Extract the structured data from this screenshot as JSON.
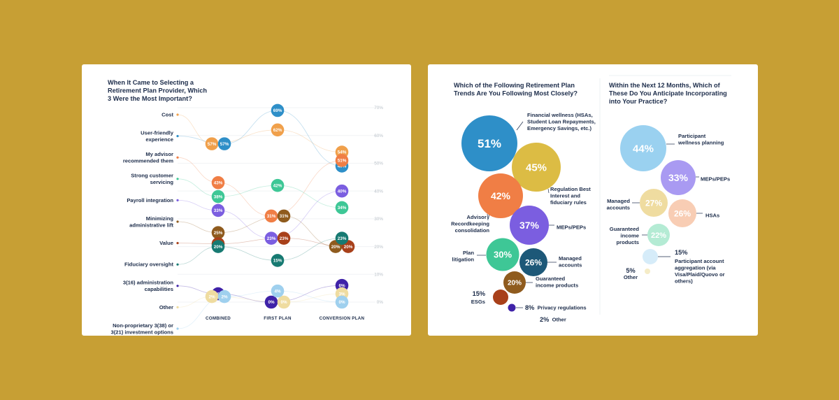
{
  "left_card": {
    "title_lines": [
      "When It Came to Selecting a",
      "Retirement Plan Provider, Which",
      "3 Were the Most Important?"
    ]
  },
  "right_card": {
    "panel1_title_lines": [
      "Which of the Following Retirement Plan",
      "Trends Are You Following Most Closely?"
    ],
    "panel2_title_lines": [
      "Within the Next 12 Months, Which of",
      "These Do You Anticipate Incorporating",
      "into Your Practice?"
    ]
  },
  "chart_data": [
    {
      "type": "scatter",
      "title": "When It Came to Selecting a Retirement Plan Provider, Which 3 Were the Most Important?",
      "x": [
        "COMBINED",
        "FIRST PLAN",
        "CONVERSION PLAN"
      ],
      "y_ticks": [
        "70%",
        "60%",
        "50%",
        "40%",
        "30%",
        "20%",
        "10%",
        "0%"
      ],
      "ylim": [
        0,
        70
      ],
      "series": [
        {
          "name": "Cost",
          "color": "#f0a04b",
          "label_lines": [
            "Cost"
          ],
          "values": [
            57,
            62,
            54
          ]
        },
        {
          "name": "User-friendly experience",
          "color": "#2e8fc8",
          "label_lines": [
            "User-friendly",
            "experience"
          ],
          "values": [
            57,
            69,
            49
          ]
        },
        {
          "name": "My advisor recommended them",
          "color": "#f07e45",
          "label_lines": [
            "My advisor",
            "recommended them"
          ],
          "values": [
            43,
            31,
            51
          ]
        },
        {
          "name": "Strong customer servicing",
          "color": "#3ec796",
          "label_lines": [
            "Strong customer",
            "servicing"
          ],
          "values": [
            38,
            42,
            34
          ]
        },
        {
          "name": "Payroll integration",
          "color": "#7b5ee0",
          "label_lines": [
            "Payroll integration"
          ],
          "values": [
            33,
            23,
            40
          ]
        },
        {
          "name": "Minimizing administrative lift",
          "color": "#8f5b1e",
          "label_lines": [
            "Minimizing",
            "administrative lift"
          ],
          "values": [
            25,
            31,
            20
          ]
        },
        {
          "name": "Value",
          "color": "#a8401a",
          "label_lines": [
            "Value"
          ],
          "values": [
            21,
            23,
            20
          ]
        },
        {
          "name": "Fiduciary oversight",
          "color": "#177a72",
          "label_lines": [
            "Fiduciary oversight"
          ],
          "values": [
            20,
            15,
            23
          ]
        },
        {
          "name": "3(16) administration capabilities",
          "color": "#3f22a8",
          "label_lines": [
            "3(16) administration",
            "capabilities"
          ],
          "values": [
            3,
            0,
            6
          ]
        },
        {
          "name": "Other",
          "color": "#efdca0",
          "label_lines": [
            "Other"
          ],
          "values": [
            2,
            0,
            3
          ]
        },
        {
          "name": "Non-proprietary 3(38) or 3(21) investment options",
          "color": "#9fd0ee",
          "label_lines": [
            "Non-proprietary 3(38) or",
            "3(21) investment options"
          ],
          "values": [
            2,
            4,
            0
          ]
        }
      ]
    },
    {
      "type": "bubble",
      "title": "Which of the Following Retirement Plan Trends Are You Following Most Closely?",
      "items": [
        {
          "name": "Financial wellness (HSAs, Student Loan Repayments, Emergency Savings, etc.)",
          "value": 51,
          "label": "51%",
          "color": "#2e8fc8",
          "label_lines": [
            "Financial wellness (HSAs,",
            "Student Loan Repayments,",
            "Emergency Savings, etc.)"
          ]
        },
        {
          "name": "Regulation Best Interest and fiduciary rules",
          "value": 45,
          "label": "45%",
          "color": "#dcbc44",
          "label_lines": [
            "Regulation Best",
            "Interest and",
            "fiduciary rules"
          ]
        },
        {
          "name": "Advisor / Recordkeeping consolidation",
          "value": 42,
          "label": "42%",
          "color": "#f07e45",
          "label_lines": [
            "Advisor /",
            "Recordkeeping",
            "consolidation"
          ]
        },
        {
          "name": "MEPs/PEPs",
          "value": 37,
          "label": "37%",
          "color": "#7b5ee0",
          "label_lines": [
            "MEPs/PEPs"
          ]
        },
        {
          "name": "Plan litigation",
          "value": 30,
          "label": "30%",
          "color": "#3ec796",
          "label_lines": [
            "Plan",
            "litigation"
          ]
        },
        {
          "name": "Managed accounts",
          "value": 26,
          "label": "26%",
          "color": "#1d5878",
          "label_lines": [
            "Managed",
            "accounts"
          ]
        },
        {
          "name": "Guaranteed income products",
          "value": 20,
          "label": "20%",
          "color": "#8f5b1e",
          "label_lines": [
            "Guaranteed",
            "income products"
          ]
        },
        {
          "name": "ESGs",
          "value": 15,
          "label": "15%",
          "color": "#a8401a",
          "label_lines": [
            "ESGs"
          ]
        },
        {
          "name": "Privacy regulations",
          "value": 8,
          "label": "8%",
          "color": "#3f22a8",
          "label_lines": [
            "Privacy regulations"
          ]
        },
        {
          "name": "Other",
          "value": 2,
          "label": "2%",
          "color": "#efdca0",
          "label_lines": [
            "Other"
          ]
        }
      ]
    },
    {
      "type": "bubble",
      "title": "Within the Next 12 Months, Which of These Do You Anticipate Incorporating into Your Practice?",
      "items": [
        {
          "name": "Participant wellness planning",
          "value": 44,
          "label": "44%",
          "color": "#9ad1f0",
          "label_lines": [
            "Participant",
            "wellness planning"
          ]
        },
        {
          "name": "MEPs/PEPs",
          "value": 33,
          "label": "33%",
          "color": "#a99af2",
          "label_lines": [
            "MEPs/PEPs"
          ]
        },
        {
          "name": "Managed accounts",
          "value": 27,
          "label": "27%",
          "color": "#efdca0",
          "label_lines": [
            "Managed",
            "accounts"
          ]
        },
        {
          "name": "HSAs",
          "value": 26,
          "label": "26%",
          "color": "#f8cdb4",
          "label_lines": [
            "HSAs"
          ]
        },
        {
          "name": "Guaranteed income products",
          "value": 22,
          "label": "22%",
          "color": "#b4ebd4",
          "label_lines": [
            "Guaranteed",
            "income",
            "products"
          ]
        },
        {
          "name": "Participant account aggregation (via Visa/Plaid/Quovo or others)",
          "value": 15,
          "label": "15%",
          "color": "#d6ecf9",
          "label_lines": [
            "Participant account",
            "aggregation (via",
            "Visa/Plaid/Quovo or",
            "others)"
          ]
        },
        {
          "name": "Other",
          "value": 5,
          "label": "5%",
          "color": "#f5ecc7",
          "label_lines": [
            "Other"
          ]
        }
      ]
    }
  ]
}
